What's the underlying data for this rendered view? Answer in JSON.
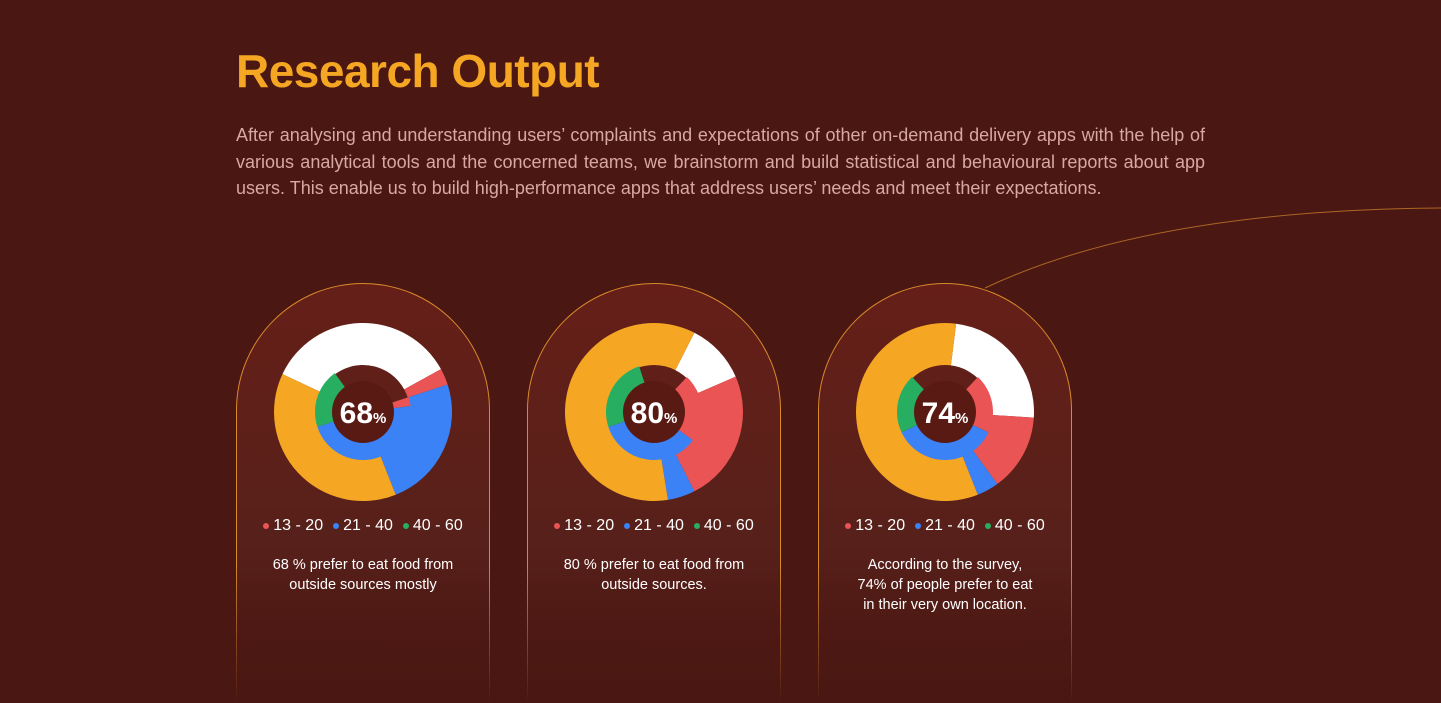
{
  "header": {
    "title": "Research Output",
    "intro": "After analysing and understanding users’ complaints and expectations of other on-demand delivery apps with the help of various analytical tools and the concerned teams, we brainstorm and build statistical and behavioural reports about app users. This enable us to build high-performance apps that address users’ needs and meet their expectations."
  },
  "colors": {
    "red": "#ea5455",
    "blue": "#3b82f6",
    "green": "#27ae60",
    "orange": "#f5a623",
    "white": "#ffffff",
    "center": "#5a1a14"
  },
  "chart_data": [
    {
      "type": "pie",
      "center_value": "68",
      "center_unit": "%",
      "categories": [
        "13 - 20",
        "21 - 40",
        "40 - 60"
      ],
      "caption": "68 % prefer to eat food from outside sources mostly",
      "outer_ring": [
        {
          "color": "white",
          "value": 35
        },
        {
          "color": "red",
          "value": 3
        },
        {
          "color": "blue",
          "value": 24
        },
        {
          "color": "orange",
          "value": 38
        }
      ],
      "inner_ring": [
        {
          "color": "red",
          "value": 3
        },
        {
          "color": "blue",
          "value": 47
        },
        {
          "color": "green",
          "value": 20
        },
        {
          "color": "blank",
          "value": 30
        }
      ]
    },
    {
      "type": "pie",
      "center_value": "80",
      "center_unit": "%",
      "categories": [
        "13 - 20",
        "21 - 40",
        "40 - 60"
      ],
      "caption": "80 % prefer to eat food from outside sources.",
      "outer_ring": [
        {
          "color": "white",
          "value": 11
        },
        {
          "color": "red",
          "value": 24
        },
        {
          "color": "blue",
          "value": 5
        },
        {
          "color": "orange",
          "value": 60
        }
      ],
      "inner_ring": [
        {
          "color": "blank",
          "value": 12
        },
        {
          "color": "red",
          "value": 23
        },
        {
          "color": "blue",
          "value": 35
        },
        {
          "color": "green",
          "value": 25
        },
        {
          "color": "blank",
          "value": 5
        }
      ]
    },
    {
      "type": "pie",
      "center_value": "74",
      "center_unit": "%",
      "categories": [
        "13 - 20",
        "21 - 40",
        "40 - 60"
      ],
      "caption": "According to the survey, 74% of people prefer to eat in their very own location.",
      "caption_lines": [
        "According to the survey,",
        "74% of people prefer to eat",
        "in their very own location."
      ],
      "outer_ring": [
        {
          "color": "white",
          "value": 24
        },
        {
          "color": "red",
          "value": 14
        },
        {
          "color": "blue",
          "value": 4
        },
        {
          "color": "orange",
          "value": 58
        }
      ],
      "inner_ring": [
        {
          "color": "blank",
          "value": 12
        },
        {
          "color": "red",
          "value": 20
        },
        {
          "color": "blue",
          "value": 36
        },
        {
          "color": "green",
          "value": 20
        },
        {
          "color": "blank",
          "value": 12
        }
      ]
    }
  ]
}
